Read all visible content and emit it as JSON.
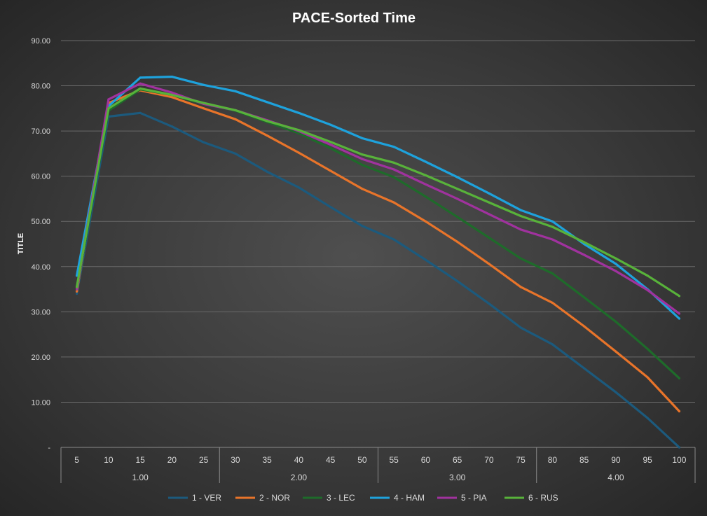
{
  "chart_data": {
    "type": "line",
    "title": "PACE-Sorted Time",
    "ylabel": "TITLE",
    "xlabel": "",
    "ylim": [
      0,
      90
    ],
    "yticks": [
      0,
      10,
      20,
      30,
      40,
      50,
      60,
      70,
      80,
      90
    ],
    "ytick_labels": [
      "-",
      "10.00",
      "20.00",
      "30.00",
      "40.00",
      "50.00",
      "60.00",
      "70.00",
      "80.00",
      "90.00"
    ],
    "grid": true,
    "legend_position": "bottom",
    "categories": [
      "5",
      "10",
      "15",
      "20",
      "25",
      "30",
      "35",
      "40",
      "45",
      "50",
      "55",
      "60",
      "65",
      "70",
      "75",
      "80",
      "85",
      "90",
      "95",
      "100"
    ],
    "groups": [
      {
        "label": "1.00",
        "from": 0,
        "to": 4
      },
      {
        "label": "2.00",
        "from": 5,
        "to": 9
      },
      {
        "label": "3.00",
        "from": 10,
        "to": 14
      },
      {
        "label": "4.00",
        "from": 15,
        "to": 19
      }
    ],
    "series": [
      {
        "name": "1 - VER",
        "color": "#1c5a7d",
        "values": [
          34.0,
          73.2,
          74.0,
          71.0,
          67.5,
          65.0,
          61.0,
          57.5,
          53.2,
          49.0,
          46.0,
          41.5,
          36.8,
          31.8,
          26.5,
          22.8,
          17.5,
          12.2,
          6.5,
          0.0
        ]
      },
      {
        "name": "2 - NOR",
        "color": "#e8742a",
        "values": [
          34.5,
          76.2,
          79.0,
          77.5,
          75.0,
          72.6,
          69.0,
          65.2,
          61.2,
          57.2,
          54.2,
          50.0,
          45.5,
          40.6,
          35.5,
          32.0,
          26.8,
          21.2,
          15.5,
          8.0
        ]
      },
      {
        "name": "3 - LEC",
        "color": "#1e6b2a",
        "values": [
          35.0,
          74.5,
          79.2,
          78.0,
          76.0,
          74.5,
          72.0,
          69.5,
          66.2,
          62.5,
          59.8,
          55.5,
          51.0,
          46.4,
          41.8,
          38.5,
          33.2,
          27.8,
          21.8,
          15.3
        ]
      },
      {
        "name": "4 - HAM",
        "color": "#1ea2dc",
        "values": [
          38.0,
          75.5,
          81.8,
          82.0,
          80.2,
          78.8,
          76.4,
          74.0,
          71.4,
          68.4,
          66.5,
          63.2,
          59.8,
          56.2,
          52.5,
          50.0,
          45.0,
          40.6,
          35.0,
          28.5
        ]
      },
      {
        "name": "5 - PIA",
        "color": "#a0329e",
        "values": [
          35.0,
          77.0,
          80.5,
          78.5,
          76.0,
          74.6,
          72.4,
          70.0,
          67.0,
          63.8,
          61.5,
          58.2,
          55.0,
          51.6,
          48.2,
          46.0,
          42.6,
          39.0,
          34.8,
          29.6
        ]
      },
      {
        "name": "6 - RUS",
        "color": "#58b23a",
        "values": [
          35.5,
          75.0,
          79.4,
          78.0,
          76.2,
          74.6,
          72.2,
          70.2,
          67.6,
          64.8,
          63.0,
          60.2,
          57.2,
          54.2,
          51.2,
          48.8,
          45.4,
          41.8,
          38.0,
          33.5
        ]
      }
    ]
  }
}
